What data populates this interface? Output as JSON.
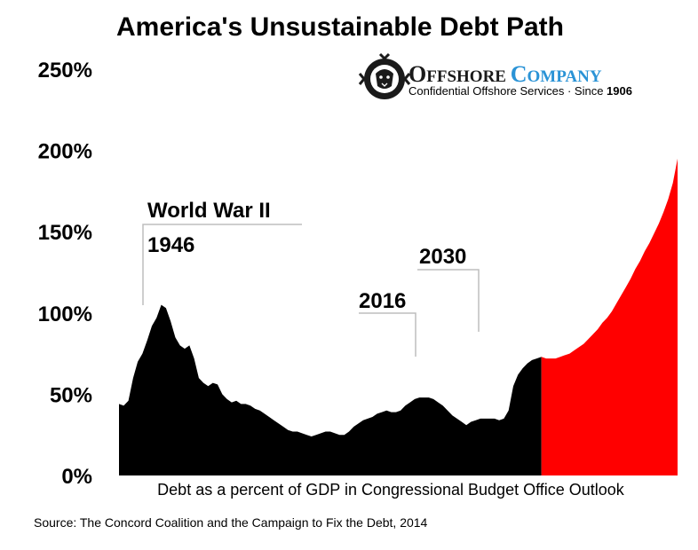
{
  "chart_data": {
    "type": "area",
    "title": "America's Unsustainable Debt Path",
    "caption": "Debt as a percent of GDP in Congressional Budget Office Outlook",
    "source": "Source: The Concord Coalition and the Campaign to Fix the Debt, 2014",
    "yticks": [
      "0%",
      "50%",
      "100%",
      "150%",
      "200%",
      "250%"
    ],
    "ylim": [
      0,
      250
    ],
    "xlim": [
      1926,
      2045
    ],
    "grid": false,
    "colors": {
      "historical": "#000000",
      "projected": "#ff0000"
    },
    "series": [
      {
        "values_x": [
          1926,
          1927,
          1928,
          1929,
          1930,
          1931,
          1932,
          1933,
          1934,
          1935,
          1936,
          1937,
          1938,
          1939,
          1940,
          1941,
          1942,
          1943,
          1944,
          1945,
          1946,
          1947,
          1948,
          1949,
          1950,
          1951,
          1952,
          1953,
          1954,
          1955,
          1956,
          1957,
          1958,
          1959,
          1960,
          1961,
          1962,
          1963,
          1964,
          1965,
          1966,
          1967,
          1968,
          1969,
          1970,
          1971,
          1972,
          1973,
          1974,
          1975,
          1976,
          1977,
          1978,
          1979,
          1980,
          1981,
          1982,
          1983,
          1984,
          1985,
          1986,
          1987,
          1988,
          1989,
          1990,
          1991,
          1992,
          1993,
          1994,
          1995,
          1996,
          1997,
          1998,
          1999,
          2000,
          2001,
          2002,
          2003,
          2004,
          2005,
          2006,
          2007,
          2008,
          2009,
          2010,
          2011,
          2012,
          2013,
          2014,
          2015,
          2016
        ],
        "values_y": [
          44,
          43,
          46,
          60,
          70,
          75,
          83,
          92,
          97,
          105,
          103,
          95,
          85,
          80,
          78,
          80,
          72,
          60,
          57,
          55,
          57,
          56,
          50,
          47,
          45,
          46,
          44,
          44,
          43,
          41,
          40,
          38,
          36,
          34,
          32,
          30,
          28,
          27,
          27,
          26,
          25,
          24,
          25,
          26,
          27,
          27,
          26,
          25,
          25,
          27,
          30,
          32,
          34,
          35,
          36,
          38,
          39,
          40,
          39,
          39,
          40,
          43,
          45,
          47,
          48,
          48,
          48,
          47,
          45,
          43,
          40,
          37,
          35,
          33,
          31,
          33,
          34,
          35,
          35,
          35,
          35,
          34,
          35,
          40,
          55,
          62,
          66,
          69,
          71,
          72,
          73
        ]
      },
      {
        "values_x": [
          2016,
          2017,
          2018,
          2019,
          2020,
          2021,
          2022,
          2023,
          2024,
          2025,
          2026,
          2027,
          2028,
          2029,
          2030,
          2031,
          2032,
          2033,
          2034,
          2035,
          2036,
          2037,
          2038,
          2039,
          2040,
          2041,
          2042,
          2043,
          2044,
          2045
        ],
        "values_y": [
          73,
          72,
          72,
          72,
          73,
          74,
          75,
          77,
          79,
          81,
          84,
          87,
          90,
          94,
          97,
          101,
          106,
          111,
          116,
          121,
          127,
          132,
          138,
          143,
          149,
          155,
          162,
          170,
          180,
          195
        ]
      }
    ],
    "annotations": [
      {
        "text": "World War II",
        "x": 1947
      },
      {
        "text": "1946",
        "x": 1947
      },
      {
        "text": "2016",
        "x": 2016
      },
      {
        "text": "2030",
        "x": 2030
      }
    ]
  },
  "logo": {
    "name_big1": "O",
    "name_small1": "FFSHORE ",
    "name_big2": "C",
    "name_small2": "OMPANY",
    "tagline": "Confidential Offshore Services · Since ",
    "year": "1906"
  }
}
